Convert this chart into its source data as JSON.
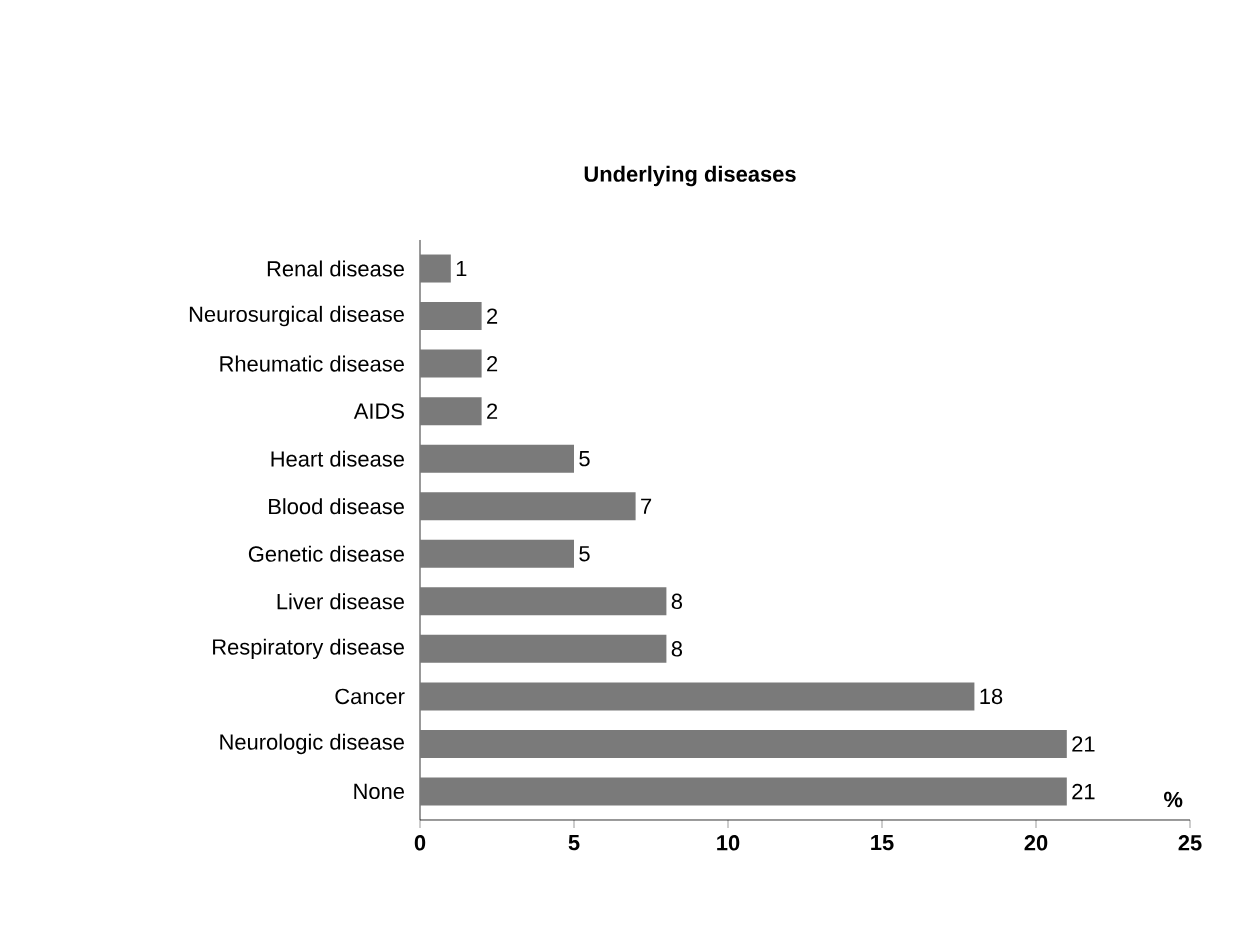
{
  "chart_data": {
    "type": "bar",
    "orientation": "horizontal",
    "title": "Underlying diseases",
    "xlabel": "%",
    "categories": [
      "Renal disease",
      "Neurosurgical disease",
      "Rheumatic disease",
      "AIDS",
      "Heart disease",
      "Blood disease",
      "Genetic disease",
      "Liver disease",
      "Respiratory disease",
      "Cancer",
      "Neurologic disease",
      "None"
    ],
    "values": [
      1,
      2,
      2,
      2,
      5,
      7,
      5,
      8,
      8,
      18,
      21,
      21
    ],
    "color": "#7a7a7a",
    "xlim": [
      0,
      25
    ],
    "xticks": [
      0,
      5,
      10,
      15,
      20,
      25
    ],
    "data_labels": true
  }
}
